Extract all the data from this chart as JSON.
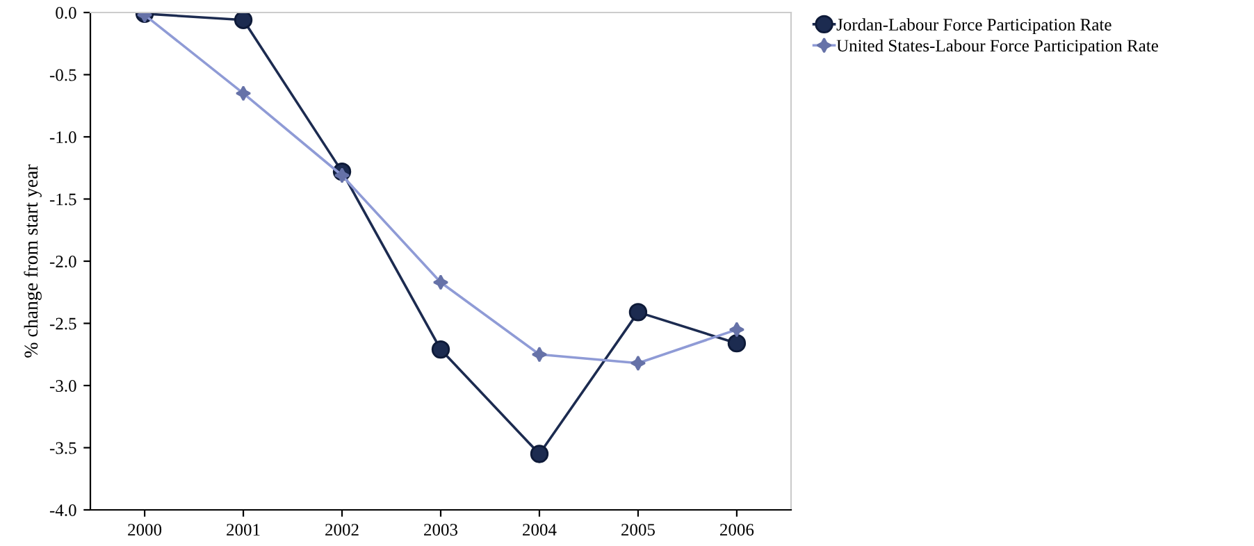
{
  "chart_data": {
    "type": "line",
    "ylabel": "% change from start year",
    "categories": [
      "2000",
      "2001",
      "2002",
      "2003",
      "2004",
      "2005",
      "2006"
    ],
    "series": [
      {
        "name": "Jordan-Labour Force Participation Rate",
        "color": "#1c2b50",
        "marker": "circle",
        "values": [
          -0.01,
          -0.06,
          -1.28,
          -2.71,
          -3.55,
          -2.41,
          -2.66
        ]
      },
      {
        "name": "United States-Labour Force Participation Rate",
        "color": "#8f9bd6",
        "marker": "star",
        "values": [
          -0.02,
          -0.65,
          -1.31,
          -2.17,
          -2.75,
          -2.82,
          -2.55
        ]
      }
    ],
    "ylim": [
      -4.0,
      0.0
    ],
    "yticks": [
      {
        "value": 0,
        "label": "0.0"
      },
      {
        "value": -0.5,
        "label": "-0.5"
      },
      {
        "value": -1.0,
        "label": "-1.0"
      },
      {
        "value": -1.5,
        "label": "-1.5"
      },
      {
        "value": -2.0,
        "label": "-2.0"
      },
      {
        "value": -2.5,
        "label": "-2.5"
      },
      {
        "value": -3.0,
        "label": "-3.0"
      },
      {
        "value": -3.5,
        "label": "-3.5"
      },
      {
        "value": -4.0,
        "label": "-4.0"
      }
    ],
    "grid": false,
    "legend": "top right",
    "line_style": "solid"
  }
}
